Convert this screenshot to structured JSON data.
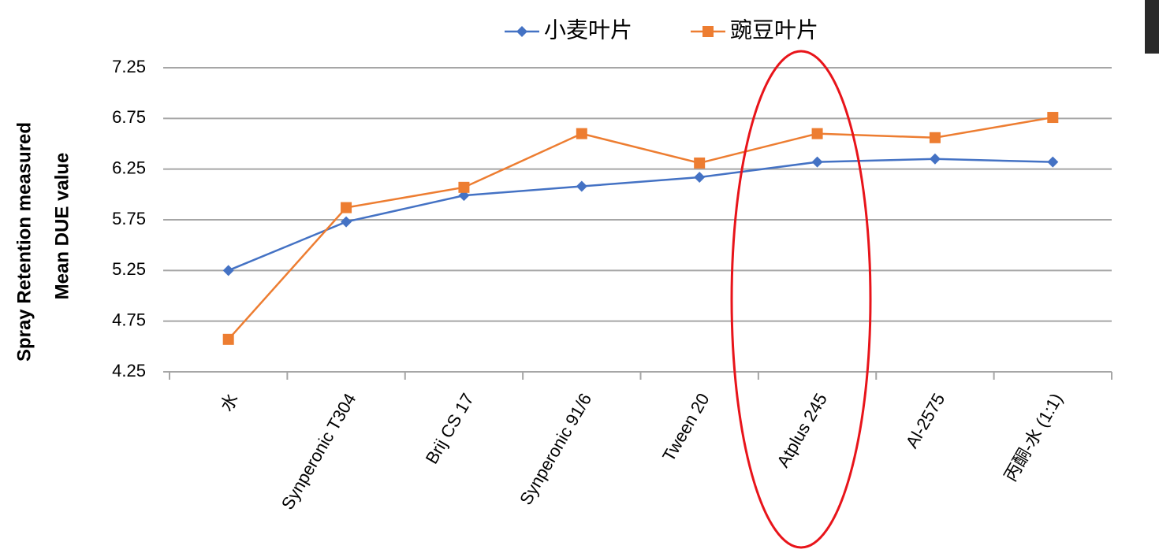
{
  "chart_data": {
    "type": "line",
    "ylabel": [
      "Spray Retention measured",
      "Mean DUE  value"
    ],
    "categories": [
      "水",
      "Synperonic T304",
      "Brij CS 17",
      "Synperonic 91/6",
      "Tween 20",
      "Atplus 245",
      "Al-2575",
      "丙酮-水 (1:1)"
    ],
    "series": [
      {
        "name": "小麦叶片",
        "color": "#4472c4",
        "marker": "diamond",
        "values": [
          5.25,
          5.73,
          5.99,
          6.08,
          6.17,
          6.32,
          6.35,
          6.32
        ]
      },
      {
        "name": "豌豆叶片",
        "color": "#ed7d31",
        "marker": "square",
        "values": [
          4.57,
          5.87,
          6.07,
          6.6,
          6.31,
          6.6,
          6.56,
          6.76
        ]
      }
    ],
    "ylim": [
      4.25,
      7.25
    ],
    "yticks": [
      4.25,
      4.75,
      5.25,
      5.75,
      6.25,
      6.75,
      7.25
    ],
    "grid": true,
    "legend": "top"
  }
}
